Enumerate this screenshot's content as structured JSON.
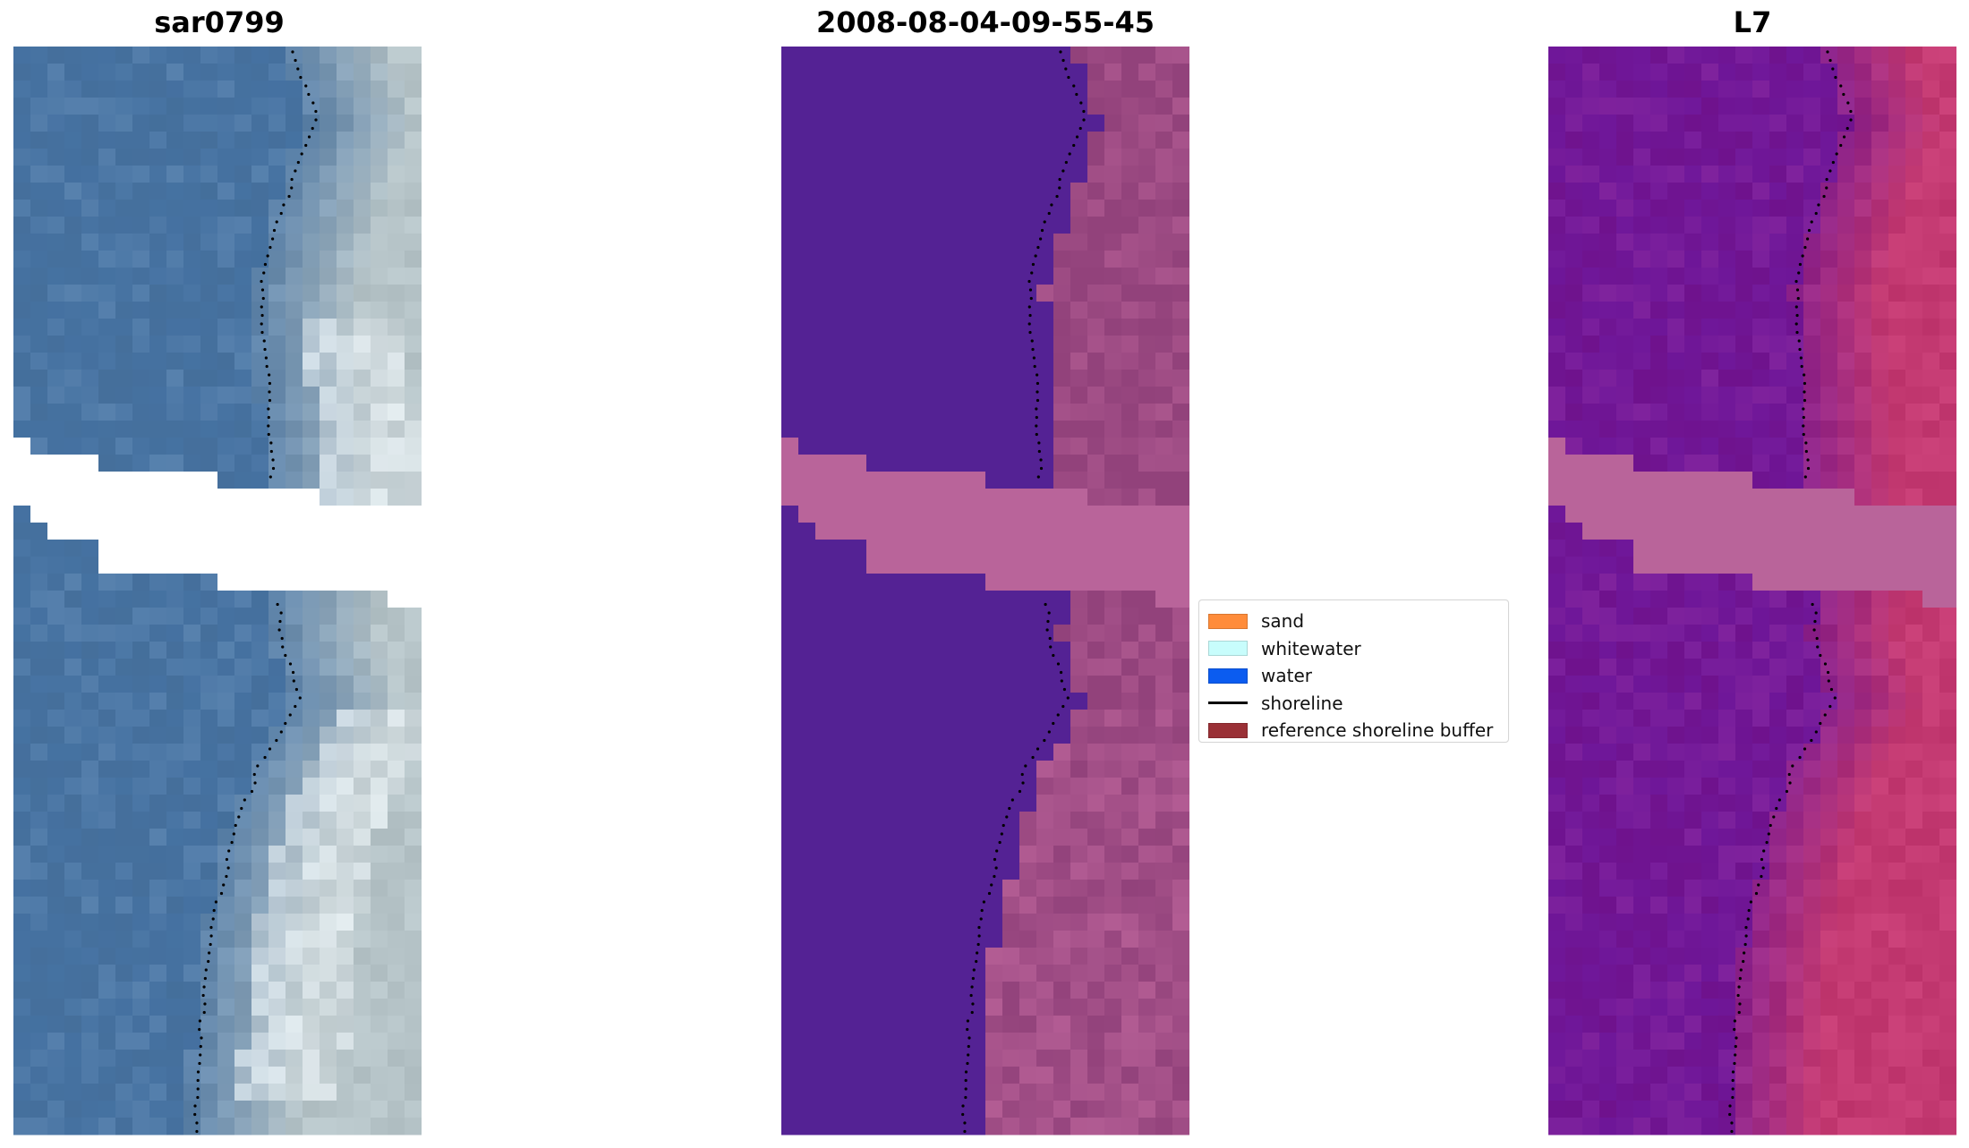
{
  "panels": [
    {
      "title": "sar0799",
      "style": "rgb"
    },
    {
      "title": "2008-08-04-09-55-45",
      "style": "classified"
    },
    {
      "title": "L7",
      "style": "ndwi"
    }
  ],
  "legend": {
    "items": [
      {
        "label": "sand",
        "color": "#ff8c3a",
        "kind": "patch"
      },
      {
        "label": "whitewater",
        "color": "#c8fdfc",
        "kind": "patch"
      },
      {
        "label": "water",
        "color": "#0b5cf0",
        "kind": "patch"
      },
      {
        "label": "shoreline",
        "color": "#000000",
        "kind": "line"
      },
      {
        "label": "reference shoreline buffer",
        "color": "#9a3036",
        "kind": "patch"
      }
    ]
  },
  "colors": {
    "rgb_water": "#3f6d9f",
    "rgb_land": "#b6c4c8",
    "class_water": "#542294",
    "class_land": "#92427b",
    "buffer": "#b9649a",
    "ndwi_water": "#6a159b",
    "ndwi_land": "#c43a72",
    "shoreline_dots": "#000000"
  }
}
